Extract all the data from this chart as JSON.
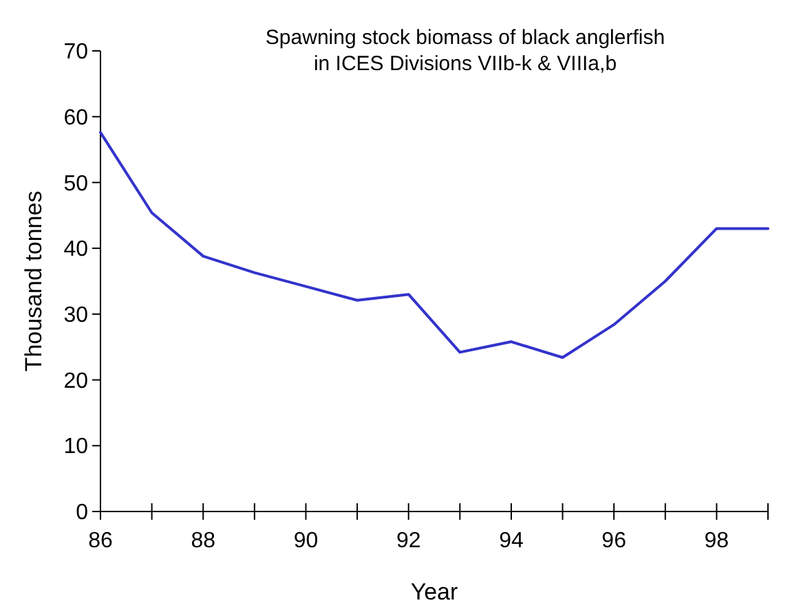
{
  "chart_data": {
    "type": "line",
    "title": "Spawning stock biomass of black anglerfish\nin ICES Divisions VIIb-k & VIIIa,b",
    "xlabel": "Year",
    "ylabel": "Thousand tonnes",
    "x": [
      86,
      87,
      88,
      89,
      90,
      91,
      92,
      93,
      94,
      95,
      96,
      97,
      98,
      99
    ],
    "series": [
      {
        "color": "#3333cc",
        "values": [
          57.6,
          45.4,
          38.8,
          36.3,
          34.2,
          32.1,
          33.0,
          24.2,
          25.8,
          23.4,
          28.4,
          35.0,
          43.0,
          43.0
        ]
      }
    ],
    "xlim": [
      86,
      99
    ],
    "xticks": [
      86,
      {
        "value": 87,
        "label": null
      },
      88,
      {
        "value": 89,
        "label": null
      },
      90,
      {
        "value": 91,
        "label": null
      },
      92,
      {
        "value": 93,
        "label": null
      },
      94,
      {
        "value": 95,
        "label": null
      },
      96,
      {
        "value": 97,
        "label": null
      },
      98,
      {
        "value": 99,
        "label": null
      }
    ],
    "ylim": [
      0,
      70
    ],
    "yticks": [
      0,
      10,
      20,
      30,
      40,
      50,
      60,
      70
    ],
    "grid": false,
    "marker": "none",
    "line_style": "solid"
  }
}
